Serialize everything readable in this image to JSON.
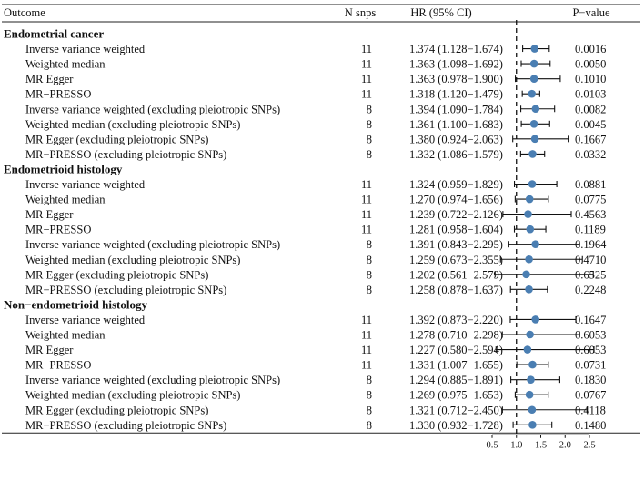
{
  "chart_data": {
    "type": "forest",
    "headers": {
      "outcome": "Outcome",
      "nsnps": "N snps",
      "hr": "HR (95% CI)",
      "pvalue": "P−value"
    },
    "x_ticks": [
      "0.5",
      "1.0",
      "1.5",
      "2.0",
      "2.5"
    ],
    "x_tick_values": [
      0.5,
      1.0,
      1.5,
      2.0,
      2.5
    ],
    "xlim": [
      0.5,
      2.6
    ],
    "reference_line": 1.0,
    "marker_color": "#4a7eb2",
    "groups": [
      {
        "title": "Endometrial cancer",
        "rows": [
          {
            "method": "Inverse variance weighted",
            "n": "11",
            "hr_text": "1.374 (1.128−1.674)",
            "hr": 1.374,
            "lo": 1.128,
            "hi": 1.674,
            "p": "0.0016"
          },
          {
            "method": "Weighted median",
            "n": "11",
            "hr_text": "1.363 (1.098−1.692)",
            "hr": 1.363,
            "lo": 1.098,
            "hi": 1.692,
            "p": "0.0050"
          },
          {
            "method": "MR Egger",
            "n": "11",
            "hr_text": "1.363 (0.978−1.900)",
            "hr": 1.363,
            "lo": 0.978,
            "hi": 1.9,
            "p": "0.1010"
          },
          {
            "method": "MR−PRESSO",
            "n": "11",
            "hr_text": "1.318 (1.120−1.479)",
            "hr": 1.318,
            "lo": 1.12,
            "hi": 1.479,
            "p": "0.0103"
          },
          {
            "method": "Inverse variance weighted (excluding pleiotropic SNPs)",
            "n": "8",
            "hr_text": "1.394 (1.090−1.784)",
            "hr": 1.394,
            "lo": 1.09,
            "hi": 1.784,
            "p": "0.0082"
          },
          {
            "method": "Weighted median (excluding pleiotropic SNPs)",
            "n": "8",
            "hr_text": "1.361 (1.100−1.683)",
            "hr": 1.361,
            "lo": 1.1,
            "hi": 1.683,
            "p": "0.0045"
          },
          {
            "method": "MR Egger (excluding pleiotropic SNPs)",
            "n": "8",
            "hr_text": "1.380 (0.924−2.063)",
            "hr": 1.38,
            "lo": 0.924,
            "hi": 2.063,
            "p": "0.1667"
          },
          {
            "method": "MR−PRESSO (excluding pleiotropic SNPs)",
            "n": "8",
            "hr_text": "1.332 (1.086−1.579)",
            "hr": 1.332,
            "lo": 1.086,
            "hi": 1.579,
            "p": "0.0332"
          }
        ]
      },
      {
        "title": "Endometrioid histology",
        "rows": [
          {
            "method": "Inverse variance weighted",
            "n": "11",
            "hr_text": "1.324 (0.959−1.829)",
            "hr": 1.324,
            "lo": 0.959,
            "hi": 1.829,
            "p": "0.0881"
          },
          {
            "method": "Weighted median",
            "n": "11",
            "hr_text": "1.270 (0.974−1.656)",
            "hr": 1.27,
            "lo": 0.974,
            "hi": 1.656,
            "p": "0.0775"
          },
          {
            "method": "MR Egger",
            "n": "11",
            "hr_text": "1.239 (0.722−2.126)",
            "hr": 1.239,
            "lo": 0.722,
            "hi": 2.126,
            "p": "0.4563"
          },
          {
            "method": "MR−PRESSO",
            "n": "11",
            "hr_text": "1.281 (0.958−1.604)",
            "hr": 1.281,
            "lo": 0.958,
            "hi": 1.604,
            "p": "0.1189"
          },
          {
            "method": "Inverse variance weighted (excluding pleiotropic SNPs)",
            "n": "8",
            "hr_text": "1.391 (0.843−2.295)",
            "hr": 1.391,
            "lo": 0.843,
            "hi": 2.295,
            "p": "0.1964"
          },
          {
            "method": "Weighted median (excluding pleiotropic SNPs)",
            "n": "8",
            "hr_text": "1.259 (0.673−2.355)",
            "hr": 1.259,
            "lo": 0.673,
            "hi": 2.355,
            "p": "0.4710"
          },
          {
            "method": "MR Egger (excluding pleiotropic SNPs)",
            "n": "8",
            "hr_text": "1.202 (0.561−2.579)",
            "hr": 1.202,
            "lo": 0.561,
            "hi": 2.579,
            "p": "0.6525"
          },
          {
            "method": "MR−PRESSO (excluding pleiotropic SNPs)",
            "n": "8",
            "hr_text": "1.258 (0.878−1.637)",
            "hr": 1.258,
            "lo": 0.878,
            "hi": 1.637,
            "p": "0.2248"
          }
        ]
      },
      {
        "title": "Non−endometrioid histology",
        "rows": [
          {
            "method": "Inverse variance weighted",
            "n": "11",
            "hr_text": "1.392 (0.873−2.220)",
            "hr": 1.392,
            "lo": 0.873,
            "hi": 2.22,
            "p": "0.1647"
          },
          {
            "method": "Weighted median",
            "n": "11",
            "hr_text": "1.278 (0.710−2.298)",
            "hr": 1.278,
            "lo": 0.71,
            "hi": 2.298,
            "p": "0.6053"
          },
          {
            "method": "MR Egger",
            "n": "11",
            "hr_text": "1.227 (0.580−2.594)",
            "hr": 1.227,
            "lo": 0.58,
            "hi": 2.594,
            "p": "0.6053"
          },
          {
            "method": "MR−PRESSO",
            "n": "11",
            "hr_text": "1.331 (1.007−1.655)",
            "hr": 1.331,
            "lo": 1.007,
            "hi": 1.655,
            "p": "0.0731"
          },
          {
            "method": "Inverse variance weighted (excluding pleiotropic SNPs)",
            "n": "8",
            "hr_text": "1.294 (0.885−1.891)",
            "hr": 1.294,
            "lo": 0.885,
            "hi": 1.891,
            "p": "0.1830"
          },
          {
            "method": "Weighted median (excluding pleiotropic SNPs)",
            "n": "8",
            "hr_text": "1.269 (0.975−1.653)",
            "hr": 1.269,
            "lo": 0.975,
            "hi": 1.653,
            "p": "0.0767"
          },
          {
            "method": "MR Egger (excluding pleiotropic SNPs)",
            "n": "8",
            "hr_text": "1.321 (0.712−2.450)",
            "hr": 1.321,
            "lo": 0.712,
            "hi": 2.45,
            "p": "0.4118"
          },
          {
            "method": "MR−PRESSO (excluding pleiotropic SNPs)",
            "n": "8",
            "hr_text": "1.330 (0.932−1.728)",
            "hr": 1.33,
            "lo": 0.932,
            "hi": 1.728,
            "p": "0.1480"
          }
        ]
      }
    ]
  }
}
